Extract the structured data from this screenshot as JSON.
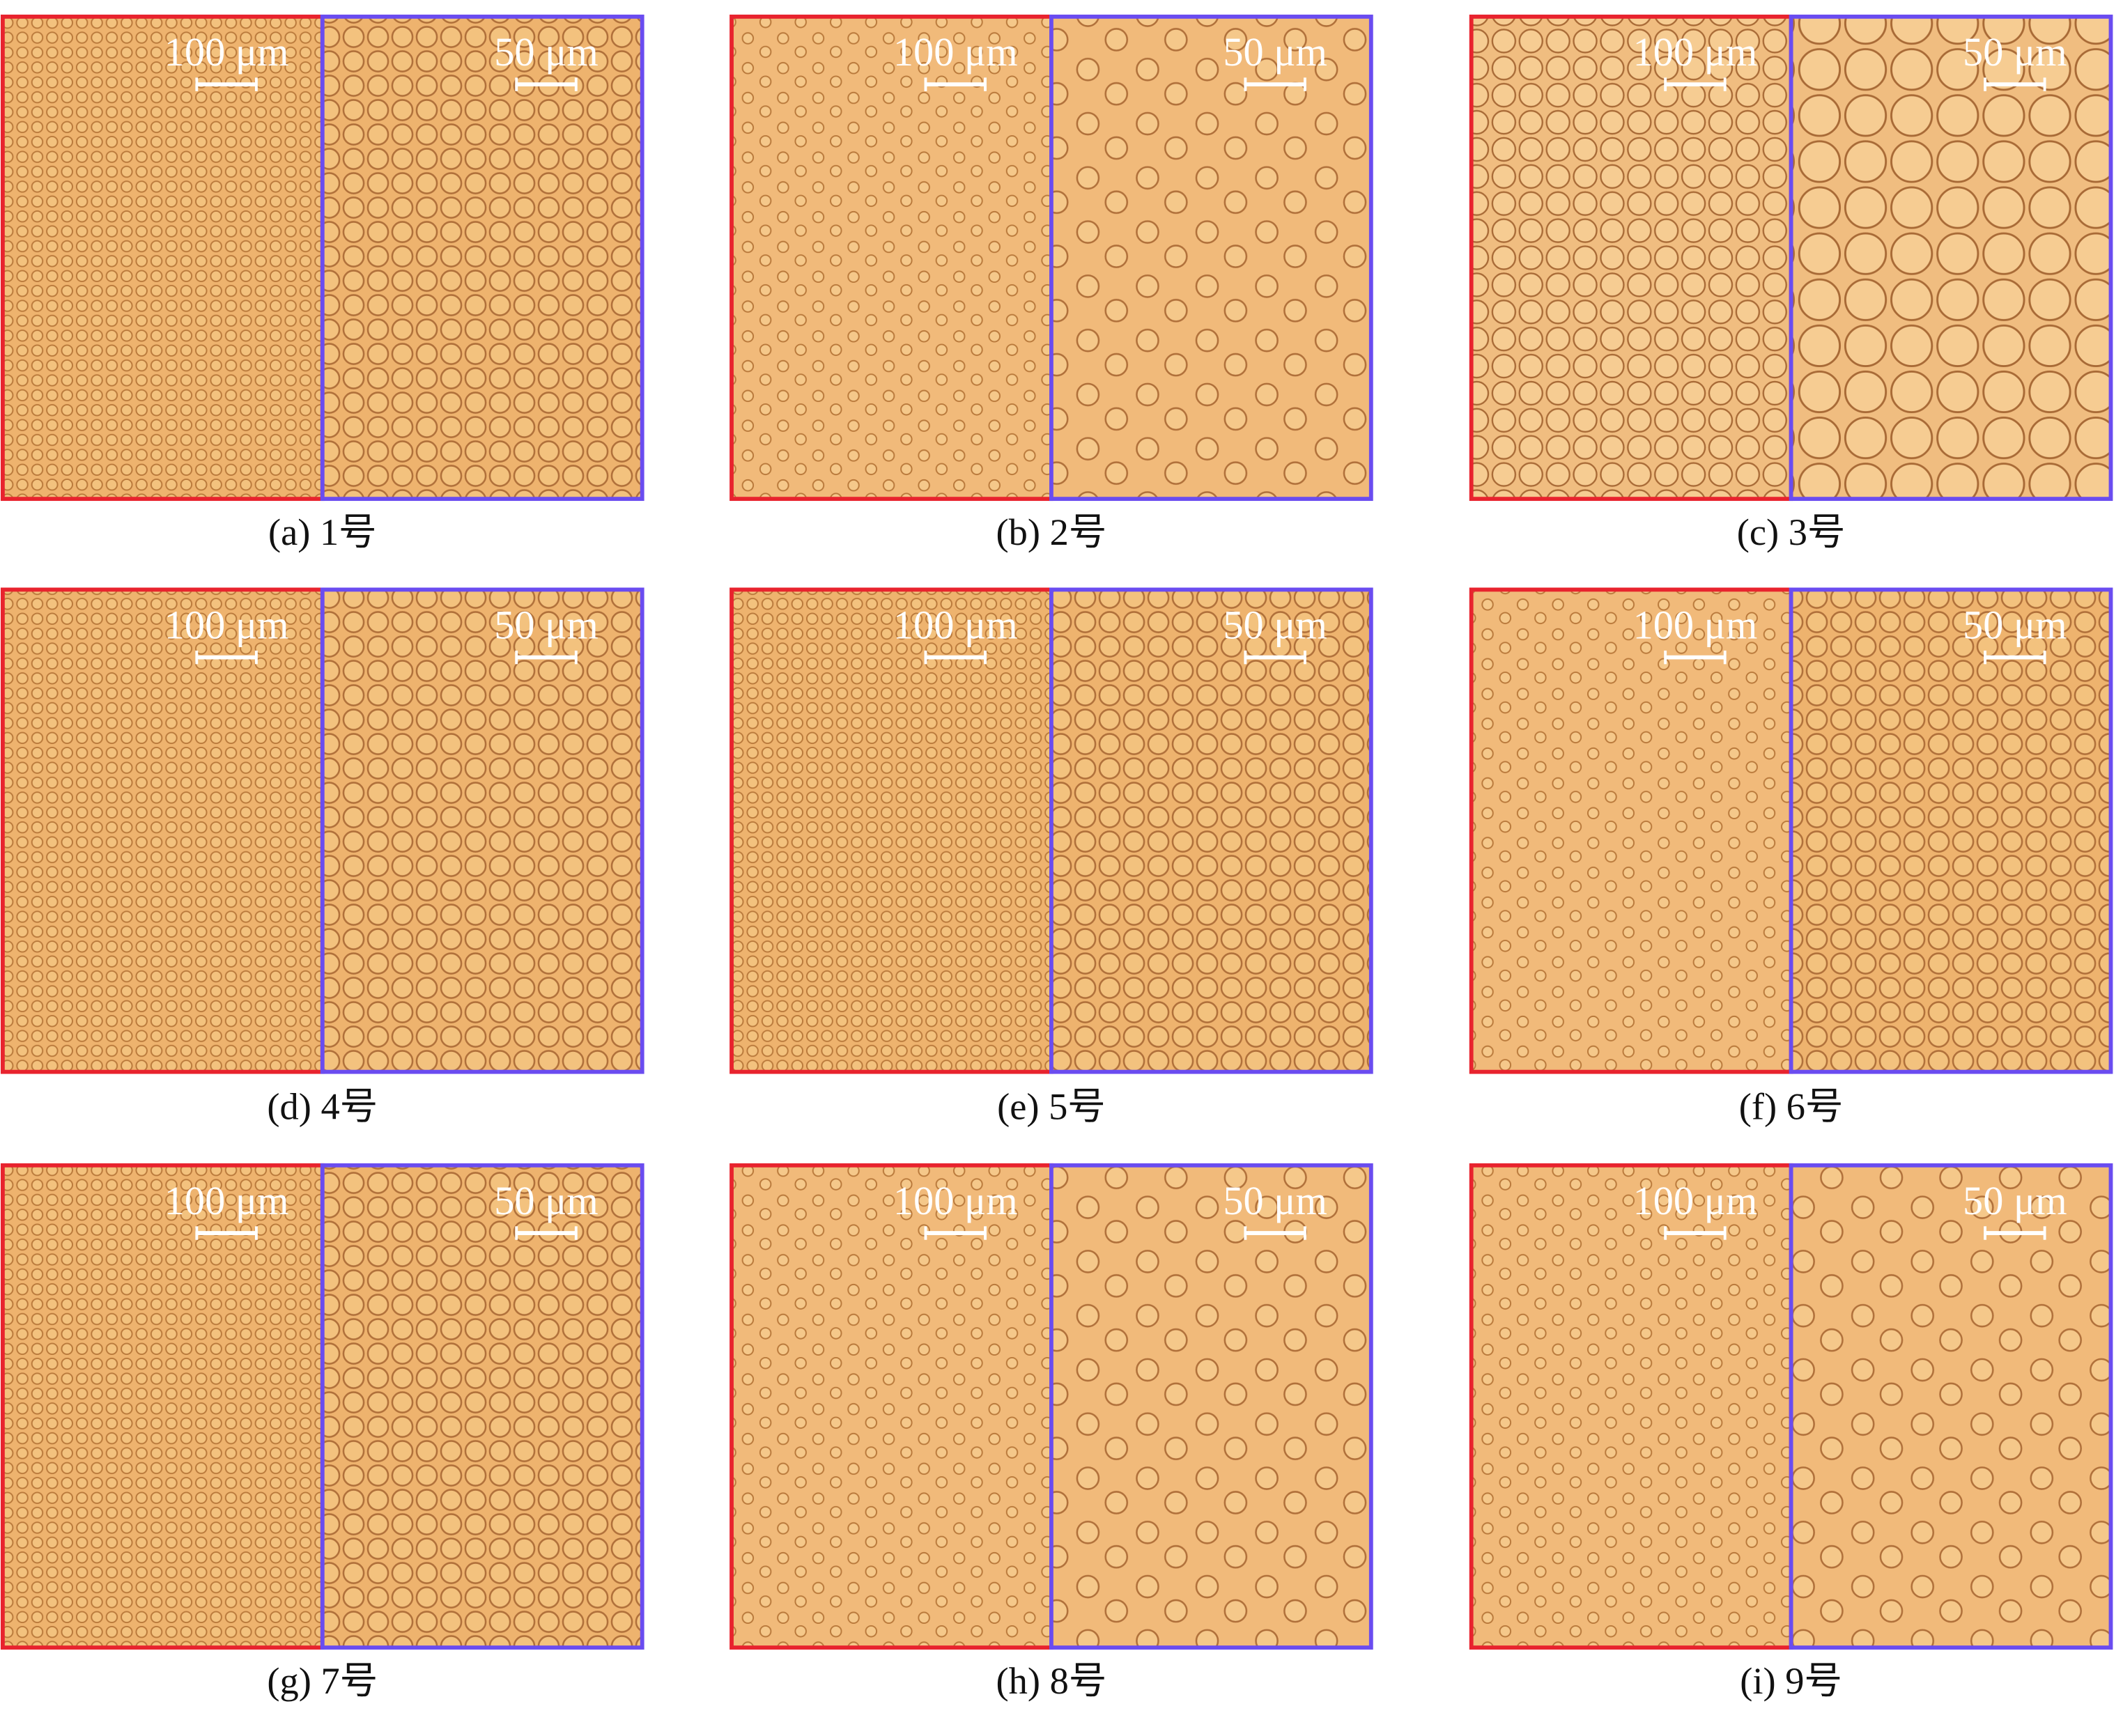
{
  "panels": [
    {
      "caption": "(a) 1号",
      "left_scale": "100 μm",
      "right_scale": "50 μm"
    },
    {
      "caption": "(b) 2号",
      "left_scale": "100 μm",
      "right_scale": "50 μm"
    },
    {
      "caption": "(c) 3号",
      "left_scale": "100 μm",
      "right_scale": "50 μm"
    },
    {
      "caption": "(d) 4号",
      "left_scale": "100 μm",
      "right_scale": "50 μm"
    },
    {
      "caption": "(e) 5号",
      "left_scale": "100 μm",
      "right_scale": "50 μm"
    },
    {
      "caption": "(f) 6号",
      "left_scale": "100 μm",
      "right_scale": "50 μm"
    },
    {
      "caption": "(g) 7号",
      "left_scale": "100 μm",
      "right_scale": "50 μm"
    },
    {
      "caption": "(h) 8号",
      "left_scale": "100 μm",
      "right_scale": "50 μm"
    },
    {
      "caption": "(i) 9号",
      "left_scale": "100 μm",
      "right_scale": "50 μm"
    }
  ]
}
